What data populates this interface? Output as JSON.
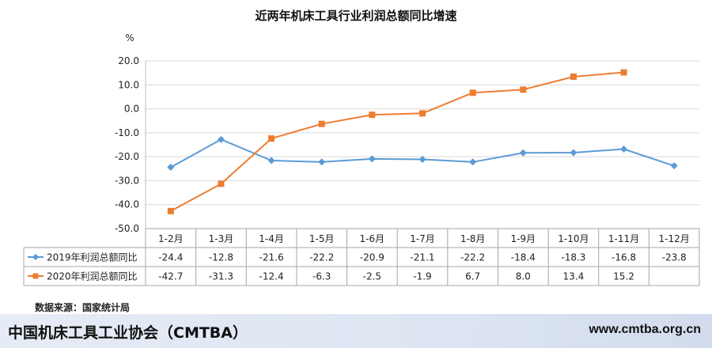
{
  "chart_data": {
    "type": "line",
    "title": "近两年机床工具行业利润总额同比增速",
    "ylabel": "%",
    "ylim": [
      -50,
      20
    ],
    "yticks": [
      "20.0",
      "10.0",
      "0.0",
      "-10.0",
      "-20.0",
      "-30.0",
      "-40.0",
      "-50.0"
    ],
    "categories": [
      "1-2月",
      "1-3月",
      "1-4月",
      "1-5月",
      "1-6月",
      "1-7月",
      "1-8月",
      "1-9月",
      "1-10月",
      "1-11月",
      "1-12月"
    ],
    "grid": true,
    "legend": "data-table",
    "series": [
      {
        "name": "2019年利润总额同比",
        "color": "#5b9bd5",
        "marker": "diamond",
        "values": [
          -24.4,
          -12.8,
          -21.6,
          -22.2,
          -20.9,
          -21.1,
          -22.2,
          -18.4,
          -18.3,
          -16.8,
          -23.8
        ],
        "labels": [
          "-24.4",
          "-12.8",
          "-21.6",
          "-22.2",
          "-20.9",
          "-21.1",
          "-22.2",
          "-18.4",
          "-18.3",
          "-16.8",
          "-23.8"
        ]
      },
      {
        "name": "2020年利润总额同比",
        "color": "#ed7d31",
        "marker": "square",
        "values": [
          -42.7,
          -31.3,
          -12.4,
          -6.3,
          -2.5,
          -1.9,
          6.7,
          8.0,
          13.4,
          15.2,
          null
        ],
        "labels": [
          "-42.7",
          "-31.3",
          "-12.4",
          "-6.3",
          "-2.5",
          "-1.9",
          "6.7",
          "8.0",
          "13.4",
          "15.2",
          ""
        ]
      }
    ]
  },
  "source": "数据来源：国家统计局",
  "footer": {
    "org": "中国机床工具工业协会（CMTBA）",
    "url": "www.cmtba.org.cn"
  }
}
